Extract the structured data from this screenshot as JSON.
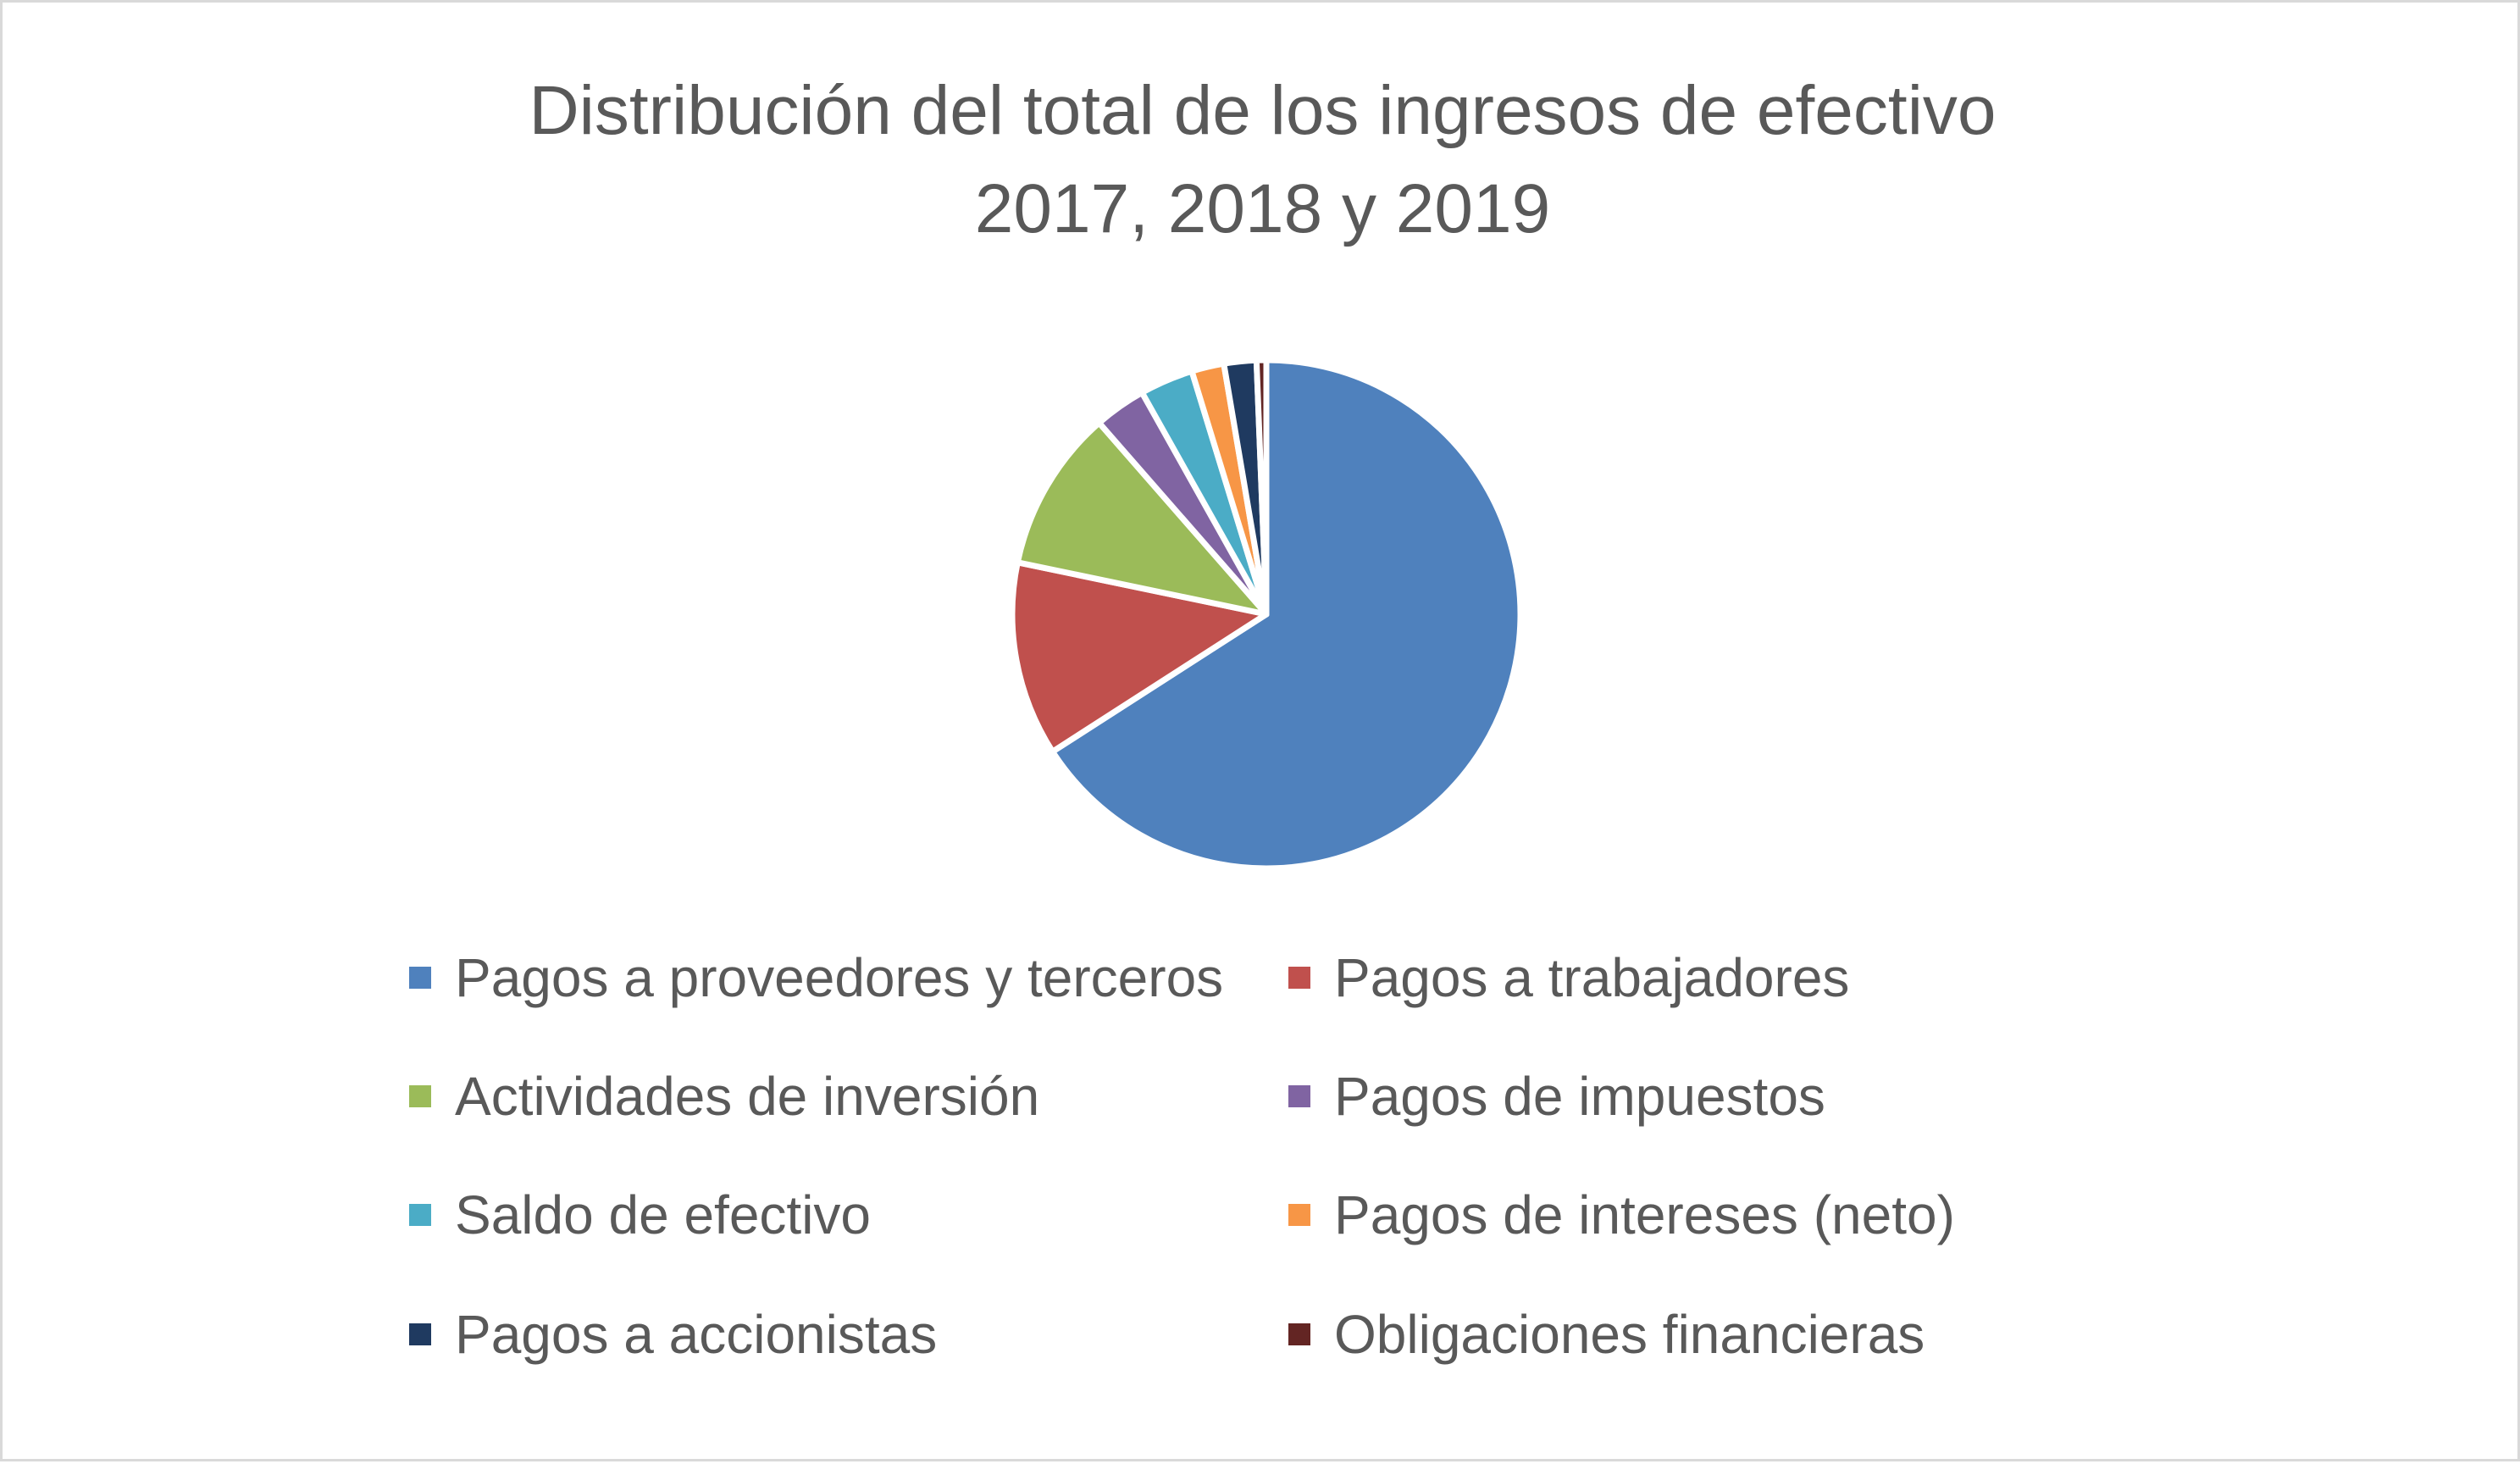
{
  "chart_data": {
    "type": "pie",
    "title": "Distribución del total de los ingresos de efectivo 2017, 2018 y 2019",
    "title_lines": [
      "Distribución del total de los ingresos de efectivo",
      "2017, 2018 y 2019"
    ],
    "categories": [
      "Pagos a proveedores y terceros",
      "Pagos a trabajadores",
      "Actividades de inversión",
      "Pagos de impuestos",
      "Saldo de efectivo",
      "Pagos de intereses (neto)",
      "Pagos a accionistas",
      "Obligaciones financieras"
    ],
    "values": [
      64.0,
      12.0,
      10.0,
      3.2,
      3.3,
      2.0,
      2.0,
      0.6
    ],
    "colors": [
      "#4f81bd",
      "#c0504d",
      "#9bbb59",
      "#8064a2",
      "#4bacc6",
      "#f79646",
      "#1f3a60",
      "#632523"
    ],
    "legend_position": "bottom",
    "data_labels": false
  }
}
